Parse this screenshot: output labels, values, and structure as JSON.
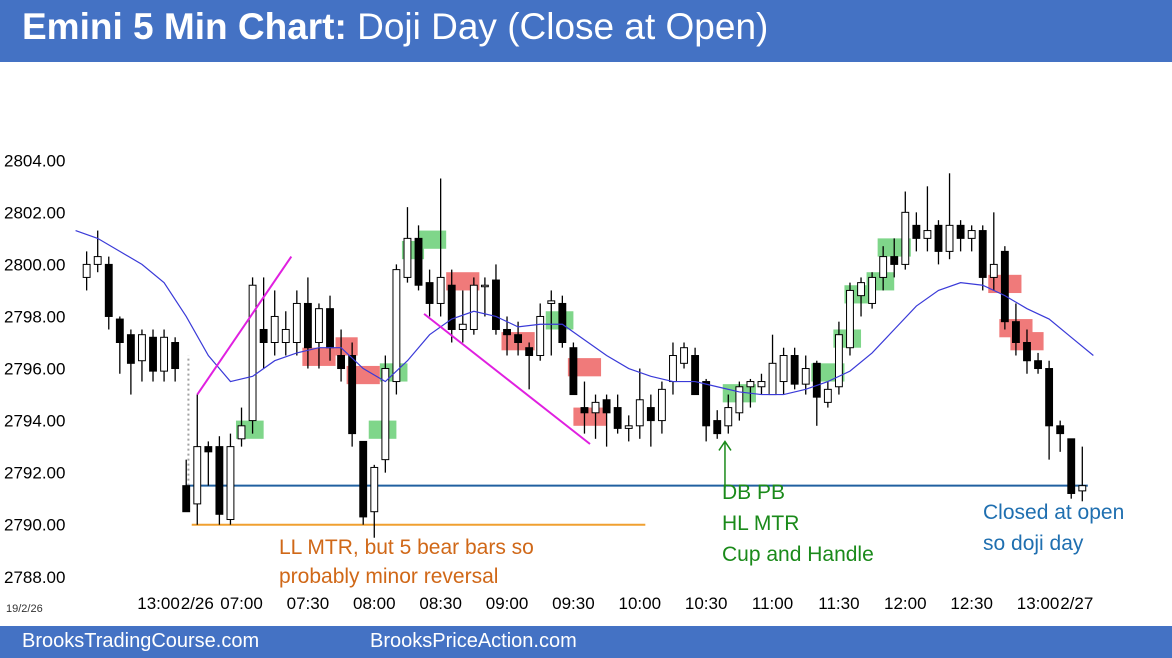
{
  "header": {
    "title_bold": "Emini 5 Min Chart:",
    "title_rest": "Doji Day (Close at Open)"
  },
  "footer": {
    "link_left": "BrooksTradingCourse.com",
    "link_right": "BrooksPriceAction.com"
  },
  "date_stamp": "19/2/26",
  "colors": {
    "header_bg": "#4472c4",
    "bull_highlight": "#7fd68a",
    "bear_highlight": "#f07a7a",
    "moving_average": "#3a3ad8",
    "trendlines": "#e020e0",
    "open_line": "#2060a0",
    "low_line": "#f0a030",
    "orange_text": "#d06818",
    "green_text": "#1a8a1a",
    "blue_text": "#1f6fb0"
  },
  "chart_data": {
    "type": "candlestick",
    "title": "Emini 5 Min Chart: Doji Day (Close at Open)",
    "ylim": [
      2787.3,
      2806.7
    ],
    "y_ticks": [
      "2788.00",
      "2790.00",
      "2792.00",
      "2794.00",
      "2796.00",
      "2798.00",
      "2800.00",
      "2802.00",
      "2804.00"
    ],
    "x_ticks": [
      {
        "label": "13:00",
        "bar": -2.5
      },
      {
        "label": "2/26",
        "bar": 1
      },
      {
        "label": "07:00",
        "bar": 5
      },
      {
        "label": "07:30",
        "bar": 11
      },
      {
        "label": "08:00",
        "bar": 17
      },
      {
        "label": "08:30",
        "bar": 23
      },
      {
        "label": "09:00",
        "bar": 29
      },
      {
        "label": "09:30",
        "bar": 35
      },
      {
        "label": "10:00",
        "bar": 41
      },
      {
        "label": "10:30",
        "bar": 47
      },
      {
        "label": "11:00",
        "bar": 53
      },
      {
        "label": "11:30",
        "bar": 59
      },
      {
        "label": "12:00",
        "bar": 65
      },
      {
        "label": "12:30",
        "bar": 71
      },
      {
        "label": "13:00",
        "bar": 77
      },
      {
        "label": "2/27",
        "bar": 80.5
      }
    ],
    "bar_range": [
      -9.6,
      82.6
    ],
    "candles": [
      {
        "i": -9,
        "o": 2799.5,
        "h": 2800.5,
        "l": 2799.0,
        "c": 2800.0
      },
      {
        "i": -8,
        "o": 2800.0,
        "h": 2801.3,
        "l": 2799.7,
        "c": 2800.3
      },
      {
        "i": -7,
        "o": 2800.0,
        "h": 2800.3,
        "l": 2797.5,
        "c": 2798.0
      },
      {
        "i": -6,
        "o": 2797.9,
        "h": 2798.0,
        "l": 2795.8,
        "c": 2797.0
      },
      {
        "i": -5,
        "o": 2797.3,
        "h": 2797.5,
        "l": 2795.0,
        "c": 2796.2
      },
      {
        "i": -4,
        "o": 2796.3,
        "h": 2797.5,
        "l": 2795.5,
        "c": 2797.3
      },
      {
        "i": -3,
        "o": 2797.2,
        "h": 2797.5,
        "l": 2795.5,
        "c": 2795.9
      },
      {
        "i": -2,
        "o": 2795.9,
        "h": 2797.5,
        "l": 2795.5,
        "c": 2797.2
      },
      {
        "i": -1,
        "o": 2797.0,
        "h": 2797.2,
        "l": 2795.5,
        "c": 2796.0
      },
      {
        "i": 0,
        "o": 2791.5,
        "h": 2792.5,
        "l": 2790.5,
        "c": 2790.5
      },
      {
        "i": 1,
        "o": 2790.8,
        "h": 2795.0,
        "l": 2790.0,
        "c": 2793.0
      },
      {
        "i": 2,
        "o": 2793.0,
        "h": 2793.2,
        "l": 2791.5,
        "c": 2792.8
      },
      {
        "i": 3,
        "o": 2793.0,
        "h": 2793.4,
        "l": 2790.0,
        "c": 2790.4
      },
      {
        "i": 4,
        "o": 2790.2,
        "h": 2793.5,
        "l": 2790.0,
        "c": 2793.0
      },
      {
        "i": 5,
        "o": 2793.3,
        "h": 2794.5,
        "l": 2793.0,
        "c": 2793.8
      },
      {
        "i": 6,
        "o": 2794.0,
        "h": 2799.5,
        "l": 2793.5,
        "c": 2799.2
      },
      {
        "i": 7,
        "o": 2797.5,
        "h": 2799.5,
        "l": 2796.0,
        "c": 2797.0
      },
      {
        "i": 8,
        "o": 2797.0,
        "h": 2799.0,
        "l": 2796.5,
        "c": 2798.0
      },
      {
        "i": 9,
        "o": 2797.0,
        "h": 2798.2,
        "l": 2796.5,
        "c": 2797.5
      },
      {
        "i": 10,
        "o": 2797.0,
        "h": 2799.0,
        "l": 2796.5,
        "c": 2798.5
      },
      {
        "i": 11,
        "o": 2798.5,
        "h": 2799.5,
        "l": 2796.0,
        "c": 2796.8
      },
      {
        "i": 12,
        "o": 2797.0,
        "h": 2798.5,
        "l": 2796.0,
        "c": 2798.3
      },
      {
        "i": 13,
        "o": 2798.3,
        "h": 2798.8,
        "l": 2796.3,
        "c": 2796.8
      },
      {
        "i": 14,
        "o": 2796.5,
        "h": 2797.5,
        "l": 2795.5,
        "c": 2796.0
      },
      {
        "i": 15,
        "o": 2796.5,
        "h": 2797.0,
        "l": 2793.0,
        "c": 2793.5
      },
      {
        "i": 16,
        "o": 2793.2,
        "h": 2793.2,
        "l": 2790.0,
        "c": 2790.3
      },
      {
        "i": 17,
        "o": 2790.5,
        "h": 2792.3,
        "l": 2789.5,
        "c": 2792.2
      },
      {
        "i": 18,
        "o": 2792.5,
        "h": 2796.5,
        "l": 2792.0,
        "c": 2796.0
      },
      {
        "i": 19,
        "o": 2795.5,
        "h": 2800.0,
        "l": 2795.0,
        "c": 2799.8
      },
      {
        "i": 20,
        "o": 2799.5,
        "h": 2802.2,
        "l": 2799.3,
        "c": 2801.0
      },
      {
        "i": 21,
        "o": 2801.0,
        "h": 2801.5,
        "l": 2799.0,
        "c": 2799.2
      },
      {
        "i": 22,
        "o": 2799.3,
        "h": 2799.8,
        "l": 2798.0,
        "c": 2798.5
      },
      {
        "i": 23,
        "o": 2798.5,
        "h": 2803.3,
        "l": 2798.0,
        "c": 2799.5
      },
      {
        "i": 24,
        "o": 2799.2,
        "h": 2799.8,
        "l": 2797.0,
        "c": 2797.5
      },
      {
        "i": 25,
        "o": 2797.5,
        "h": 2799.0,
        "l": 2797.0,
        "c": 2797.7
      },
      {
        "i": 26,
        "o": 2797.5,
        "h": 2799.5,
        "l": 2797.3,
        "c": 2799.2
      },
      {
        "i": 27,
        "o": 2799.2,
        "h": 2799.5,
        "l": 2798.0,
        "c": 2799.2
      },
      {
        "i": 28,
        "o": 2799.4,
        "h": 2800.0,
        "l": 2797.3,
        "c": 2797.5
      },
      {
        "i": 29,
        "o": 2797.5,
        "h": 2798.0,
        "l": 2796.5,
        "c": 2797.3
      },
      {
        "i": 30,
        "o": 2797.3,
        "h": 2797.8,
        "l": 2796.5,
        "c": 2797.0
      },
      {
        "i": 31,
        "o": 2796.8,
        "h": 2797.0,
        "l": 2795.2,
        "c": 2796.5
      },
      {
        "i": 32,
        "o": 2796.5,
        "h": 2798.5,
        "l": 2796.3,
        "c": 2798.0
      },
      {
        "i": 33,
        "o": 2798.5,
        "h": 2799.0,
        "l": 2796.5,
        "c": 2798.6
      },
      {
        "i": 34,
        "o": 2798.5,
        "h": 2798.8,
        "l": 2796.8,
        "c": 2797.0
      },
      {
        "i": 35,
        "o": 2796.8,
        "h": 2797.0,
        "l": 2795.0,
        "c": 2795.0
      },
      {
        "i": 36,
        "o": 2794.5,
        "h": 2795.5,
        "l": 2793.5,
        "c": 2794.3
      },
      {
        "i": 37,
        "o": 2794.3,
        "h": 2795.0,
        "l": 2793.3,
        "c": 2794.7
      },
      {
        "i": 38,
        "o": 2794.8,
        "h": 2795.0,
        "l": 2793.0,
        "c": 2794.3
      },
      {
        "i": 39,
        "o": 2794.5,
        "h": 2795.0,
        "l": 2793.5,
        "c": 2793.7
      },
      {
        "i": 40,
        "o": 2793.7,
        "h": 2794.2,
        "l": 2793.2,
        "c": 2793.8
      },
      {
        "i": 41,
        "o": 2793.8,
        "h": 2796.0,
        "l": 2793.3,
        "c": 2794.8
      },
      {
        "i": 42,
        "o": 2794.5,
        "h": 2795.0,
        "l": 2793.0,
        "c": 2794.0
      },
      {
        "i": 43,
        "o": 2794.0,
        "h": 2795.5,
        "l": 2793.5,
        "c": 2795.2
      },
      {
        "i": 44,
        "o": 2795.5,
        "h": 2797.0,
        "l": 2795.0,
        "c": 2796.5
      },
      {
        "i": 45,
        "o": 2796.2,
        "h": 2797.0,
        "l": 2796.0,
        "c": 2796.8
      },
      {
        "i": 46,
        "o": 2796.5,
        "h": 2796.8,
        "l": 2795.0,
        "c": 2795.0
      },
      {
        "i": 47,
        "o": 2795.5,
        "h": 2795.6,
        "l": 2793.2,
        "c": 2793.8
      },
      {
        "i": 48,
        "o": 2794.0,
        "h": 2794.4,
        "l": 2793.3,
        "c": 2793.5
      },
      {
        "i": 49,
        "o": 2793.8,
        "h": 2795.0,
        "l": 2793.5,
        "c": 2794.5
      },
      {
        "i": 50,
        "o": 2794.3,
        "h": 2795.5,
        "l": 2794.0,
        "c": 2795.3
      },
      {
        "i": 51,
        "o": 2795.3,
        "h": 2795.6,
        "l": 2794.5,
        "c": 2795.5
      },
      {
        "i": 52,
        "o": 2795.3,
        "h": 2795.8,
        "l": 2795.0,
        "c": 2795.5
      },
      {
        "i": 53,
        "o": 2795.0,
        "h": 2797.3,
        "l": 2795.0,
        "c": 2796.2
      },
      {
        "i": 54,
        "o": 2795.5,
        "h": 2796.8,
        "l": 2795.0,
        "c": 2796.5
      },
      {
        "i": 55,
        "o": 2796.5,
        "h": 2796.8,
        "l": 2795.2,
        "c": 2795.4
      },
      {
        "i": 56,
        "o": 2795.4,
        "h": 2796.5,
        "l": 2795.0,
        "c": 2796.0
      },
      {
        "i": 57,
        "o": 2796.2,
        "h": 2796.3,
        "l": 2793.8,
        "c": 2794.9
      },
      {
        "i": 58,
        "o": 2794.7,
        "h": 2795.5,
        "l": 2794.5,
        "c": 2795.2
      },
      {
        "i": 59,
        "o": 2795.3,
        "h": 2797.8,
        "l": 2795.0,
        "c": 2797.3
      },
      {
        "i": 60,
        "o": 2796.8,
        "h": 2799.3,
        "l": 2796.5,
        "c": 2799.0
      },
      {
        "i": 61,
        "o": 2798.8,
        "h": 2799.5,
        "l": 2798.0,
        "c": 2799.3
      },
      {
        "i": 62,
        "o": 2798.5,
        "h": 2799.7,
        "l": 2798.3,
        "c": 2799.5
      },
      {
        "i": 63,
        "o": 2799.5,
        "h": 2800.7,
        "l": 2799.0,
        "c": 2800.3
      },
      {
        "i": 64,
        "o": 2800.3,
        "h": 2801.0,
        "l": 2799.5,
        "c": 2800.0
      },
      {
        "i": 65,
        "o": 2800.0,
        "h": 2802.8,
        "l": 2799.8,
        "c": 2802.0
      },
      {
        "i": 66,
        "o": 2801.5,
        "h": 2802.0,
        "l": 2800.5,
        "c": 2801.0
      },
      {
        "i": 67,
        "o": 2801.0,
        "h": 2803.0,
        "l": 2800.5,
        "c": 2801.3
      },
      {
        "i": 68,
        "o": 2801.5,
        "h": 2801.7,
        "l": 2800.0,
        "c": 2800.5
      },
      {
        "i": 69,
        "o": 2800.5,
        "h": 2803.5,
        "l": 2800.2,
        "c": 2801.5
      },
      {
        "i": 70,
        "o": 2801.5,
        "h": 2801.7,
        "l": 2800.5,
        "c": 2801.0
      },
      {
        "i": 71,
        "o": 2801.0,
        "h": 2801.5,
        "l": 2800.5,
        "c": 2801.3
      },
      {
        "i": 72,
        "o": 2801.3,
        "h": 2801.5,
        "l": 2799.0,
        "c": 2799.5
      },
      {
        "i": 73,
        "o": 2799.5,
        "h": 2802.0,
        "l": 2799.0,
        "c": 2800.0
      },
      {
        "i": 74,
        "o": 2800.5,
        "h": 2800.7,
        "l": 2797.5,
        "c": 2797.8
      },
      {
        "i": 75,
        "o": 2797.8,
        "h": 2798.5,
        "l": 2796.5,
        "c": 2797.0
      },
      {
        "i": 76,
        "o": 2797.0,
        "h": 2797.5,
        "l": 2795.8,
        "c": 2796.3
      },
      {
        "i": 77,
        "o": 2796.3,
        "h": 2796.6,
        "l": 2795.8,
        "c": 2796.0
      },
      {
        "i": 78,
        "o": 2796.0,
        "h": 2796.3,
        "l": 2792.5,
        "c": 2793.8
      },
      {
        "i": 79,
        "o": 2793.8,
        "h": 2794.0,
        "l": 2792.8,
        "c": 2793.5
      },
      {
        "i": 80,
        "o": 2793.3,
        "h": 2793.3,
        "l": 2791.0,
        "c": 2791.2
      },
      {
        "i": 81,
        "o": 2791.3,
        "h": 2793.0,
        "l": 2790.9,
        "c": 2791.5
      }
    ],
    "moving_average": [
      [
        -10,
        2801.3
      ],
      [
        -8,
        2801.0
      ],
      [
        -6,
        2800.5
      ],
      [
        -4,
        2800.0
      ],
      [
        -2,
        2799.3
      ],
      [
        0,
        2798.0
      ],
      [
        2,
        2796.5
      ],
      [
        4,
        2795.5
      ],
      [
        6,
        2795.7
      ],
      [
        8,
        2796.3
      ],
      [
        10,
        2796.6
      ],
      [
        12,
        2796.8
      ],
      [
        14,
        2796.8
      ],
      [
        16,
        2796.0
      ],
      [
        18,
        2795.5
      ],
      [
        20,
        2796.3
      ],
      [
        22,
        2797.3
      ],
      [
        24,
        2797.9
      ],
      [
        26,
        2798.2
      ],
      [
        28,
        2798.0
      ],
      [
        30,
        2797.6
      ],
      [
        32,
        2797.7
      ],
      [
        34,
        2797.7
      ],
      [
        36,
        2797.1
      ],
      [
        38,
        2796.5
      ],
      [
        40,
        2796.0
      ],
      [
        42,
        2795.7
      ],
      [
        44,
        2795.5
      ],
      [
        46,
        2795.5
      ],
      [
        48,
        2795.3
      ],
      [
        50,
        2795.1
      ],
      [
        52,
        2795.0
      ],
      [
        54,
        2795.0
      ],
      [
        56,
        2795.2
      ],
      [
        58,
        2795.5
      ],
      [
        60,
        2795.9
      ],
      [
        62,
        2796.6
      ],
      [
        64,
        2797.5
      ],
      [
        66,
        2798.4
      ],
      [
        68,
        2799.0
      ],
      [
        70,
        2799.3
      ],
      [
        72,
        2799.2
      ],
      [
        74,
        2798.8
      ],
      [
        76,
        2798.3
      ],
      [
        78,
        2797.9
      ],
      [
        80,
        2797.2
      ],
      [
        82,
        2796.5
      ]
    ],
    "trendlines": [
      {
        "from": [
          1,
          2795.0
        ],
        "to": [
          9.5,
          2800.3
        ]
      },
      {
        "from": [
          21.5,
          2798.1
        ],
        "to": [
          36.5,
          2793.1
        ]
      }
    ],
    "horizontal_lines": [
      {
        "y": 2791.5,
        "from": 0,
        "to": 81.5,
        "kind": "open"
      },
      {
        "y": 2790.0,
        "from": 0.5,
        "to": 41.5,
        "kind": "low"
      }
    ],
    "dotted_line": {
      "bar": 0.2,
      "from": 2791.5,
      "to": 2796.5
    },
    "bull_highlights": [
      {
        "from": 4.5,
        "to": 7.0,
        "low": 2793.3,
        "high": 2794.0
      },
      {
        "from": 16.5,
        "to": 19.0,
        "low": 2793.3,
        "high": 2794.0
      },
      {
        "from": 17.5,
        "to": 20.0,
        "low": 2795.5,
        "high": 2796.2
      },
      {
        "from": 19.5,
        "to": 21.5,
        "low": 2800.2,
        "high": 2800.9
      },
      {
        "from": 21.0,
        "to": 23.5,
        "low": 2800.6,
        "high": 2801.3
      },
      {
        "from": 32.5,
        "to": 35.0,
        "low": 2797.5,
        "high": 2798.2
      },
      {
        "from": 48.5,
        "to": 51.5,
        "low": 2794.7,
        "high": 2795.4
      },
      {
        "from": 56.5,
        "to": 59.5,
        "low": 2795.5,
        "high": 2796.2
      },
      {
        "from": 58.5,
        "to": 61.0,
        "low": 2796.8,
        "high": 2797.5
      },
      {
        "from": 59.5,
        "to": 62.0,
        "low": 2798.5,
        "high": 2799.2
      },
      {
        "from": 61.5,
        "to": 64.0,
        "low": 2799.0,
        "high": 2799.7
      },
      {
        "from": 62.5,
        "to": 65.5,
        "low": 2800.3,
        "high": 2801.0
      }
    ],
    "bear_highlights": [
      {
        "from": 10.5,
        "to": 13.5,
        "low": 2796.1,
        "high": 2796.8
      },
      {
        "from": 13.5,
        "to": 15.5,
        "low": 2796.5,
        "high": 2797.2
      },
      {
        "from": 14.5,
        "to": 17.5,
        "low": 2795.4,
        "high": 2796.1
      },
      {
        "from": 23.5,
        "to": 26.5,
        "low": 2799.0,
        "high": 2799.7
      },
      {
        "from": 28.5,
        "to": 31.5,
        "low": 2796.7,
        "high": 2797.4
      },
      {
        "from": 34.5,
        "to": 37.5,
        "low": 2795.7,
        "high": 2796.4
      },
      {
        "from": 35.0,
        "to": 38.0,
        "low": 2793.8,
        "high": 2794.5
      },
      {
        "from": 72.5,
        "to": 75.5,
        "low": 2798.9,
        "high": 2799.6
      },
      {
        "from": 73.5,
        "to": 76.5,
        "low": 2797.2,
        "high": 2797.9
      },
      {
        "from": 74.5,
        "to": 77.5,
        "low": 2796.7,
        "high": 2797.4
      }
    ],
    "arrow": {
      "bar": 48.7,
      "from": 2791.4,
      "to": 2793.2
    },
    "annotations": [
      {
        "lines": [
          "LL MTR, but 5 bear bars so",
          "probably minor reversal"
        ],
        "color": "orange"
      },
      {
        "lines": [
          "DB PB",
          "HL MTR",
          "Cup and Handle"
        ],
        "color": "green"
      },
      {
        "lines": [
          "Closed at open",
          "so doji day"
        ],
        "color": "blue"
      }
    ]
  }
}
